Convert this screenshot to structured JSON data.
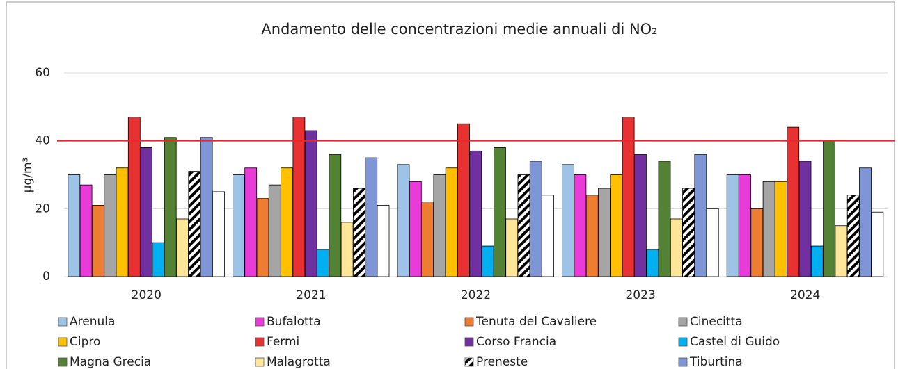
{
  "chart_data": {
    "type": "bar",
    "title": "Andamento delle concentrazioni medie annuali di NO₂",
    "y_label": "µg/m³",
    "categories": [
      "2020",
      "2021",
      "2022",
      "2023",
      "2024"
    ],
    "ylim": [
      0,
      60
    ],
    "yticks": [
      0,
      20,
      40,
      60
    ],
    "grid": true,
    "reference_line": {
      "value": 40,
      "color": "#e8262b"
    },
    "series": [
      {
        "name": "Arenula",
        "color": "#9dc3e6",
        "values": [
          30,
          30,
          33,
          33,
          30
        ]
      },
      {
        "name": "Bufalotta",
        "color": "#e83bd8",
        "values": [
          27,
          32,
          28,
          30,
          30
        ]
      },
      {
        "name": "Tenuta del Cavaliere",
        "color": "#ed7d31",
        "values": [
          21,
          23,
          22,
          24,
          20
        ]
      },
      {
        "name": "Cinecitta",
        "color": "#a5a5a5",
        "values": [
          30,
          27,
          30,
          26,
          28
        ]
      },
      {
        "name": "Cipro",
        "color": "#ffc000",
        "values": [
          32,
          32,
          32,
          30,
          28
        ]
      },
      {
        "name": "Fermi",
        "color": "#e83232",
        "values": [
          47,
          47,
          45,
          47,
          44
        ]
      },
      {
        "name": "Corso Francia",
        "color": "#7030a0",
        "values": [
          38,
          43,
          37,
          36,
          34
        ]
      },
      {
        "name": "Castel di Guido",
        "color": "#00b0f0",
        "values": [
          10,
          8,
          9,
          8,
          9
        ]
      },
      {
        "name": "Magna Grecia",
        "color": "#548235",
        "values": [
          41,
          36,
          38,
          34,
          40
        ]
      },
      {
        "name": "Malagrotta",
        "color": "#ffe699",
        "values": [
          17,
          16,
          17,
          17,
          15
        ]
      },
      {
        "name": "Preneste",
        "color": "#000000",
        "pattern": "hatch",
        "values": [
          31,
          26,
          30,
          26,
          24
        ]
      },
      {
        "name": "Tiburtina",
        "color": "#7f96d6",
        "values": [
          41,
          35,
          34,
          36,
          32
        ]
      },
      {
        "color": "#ffffff",
        "values": [
          25,
          21,
          24,
          20,
          19
        ]
      }
    ]
  }
}
